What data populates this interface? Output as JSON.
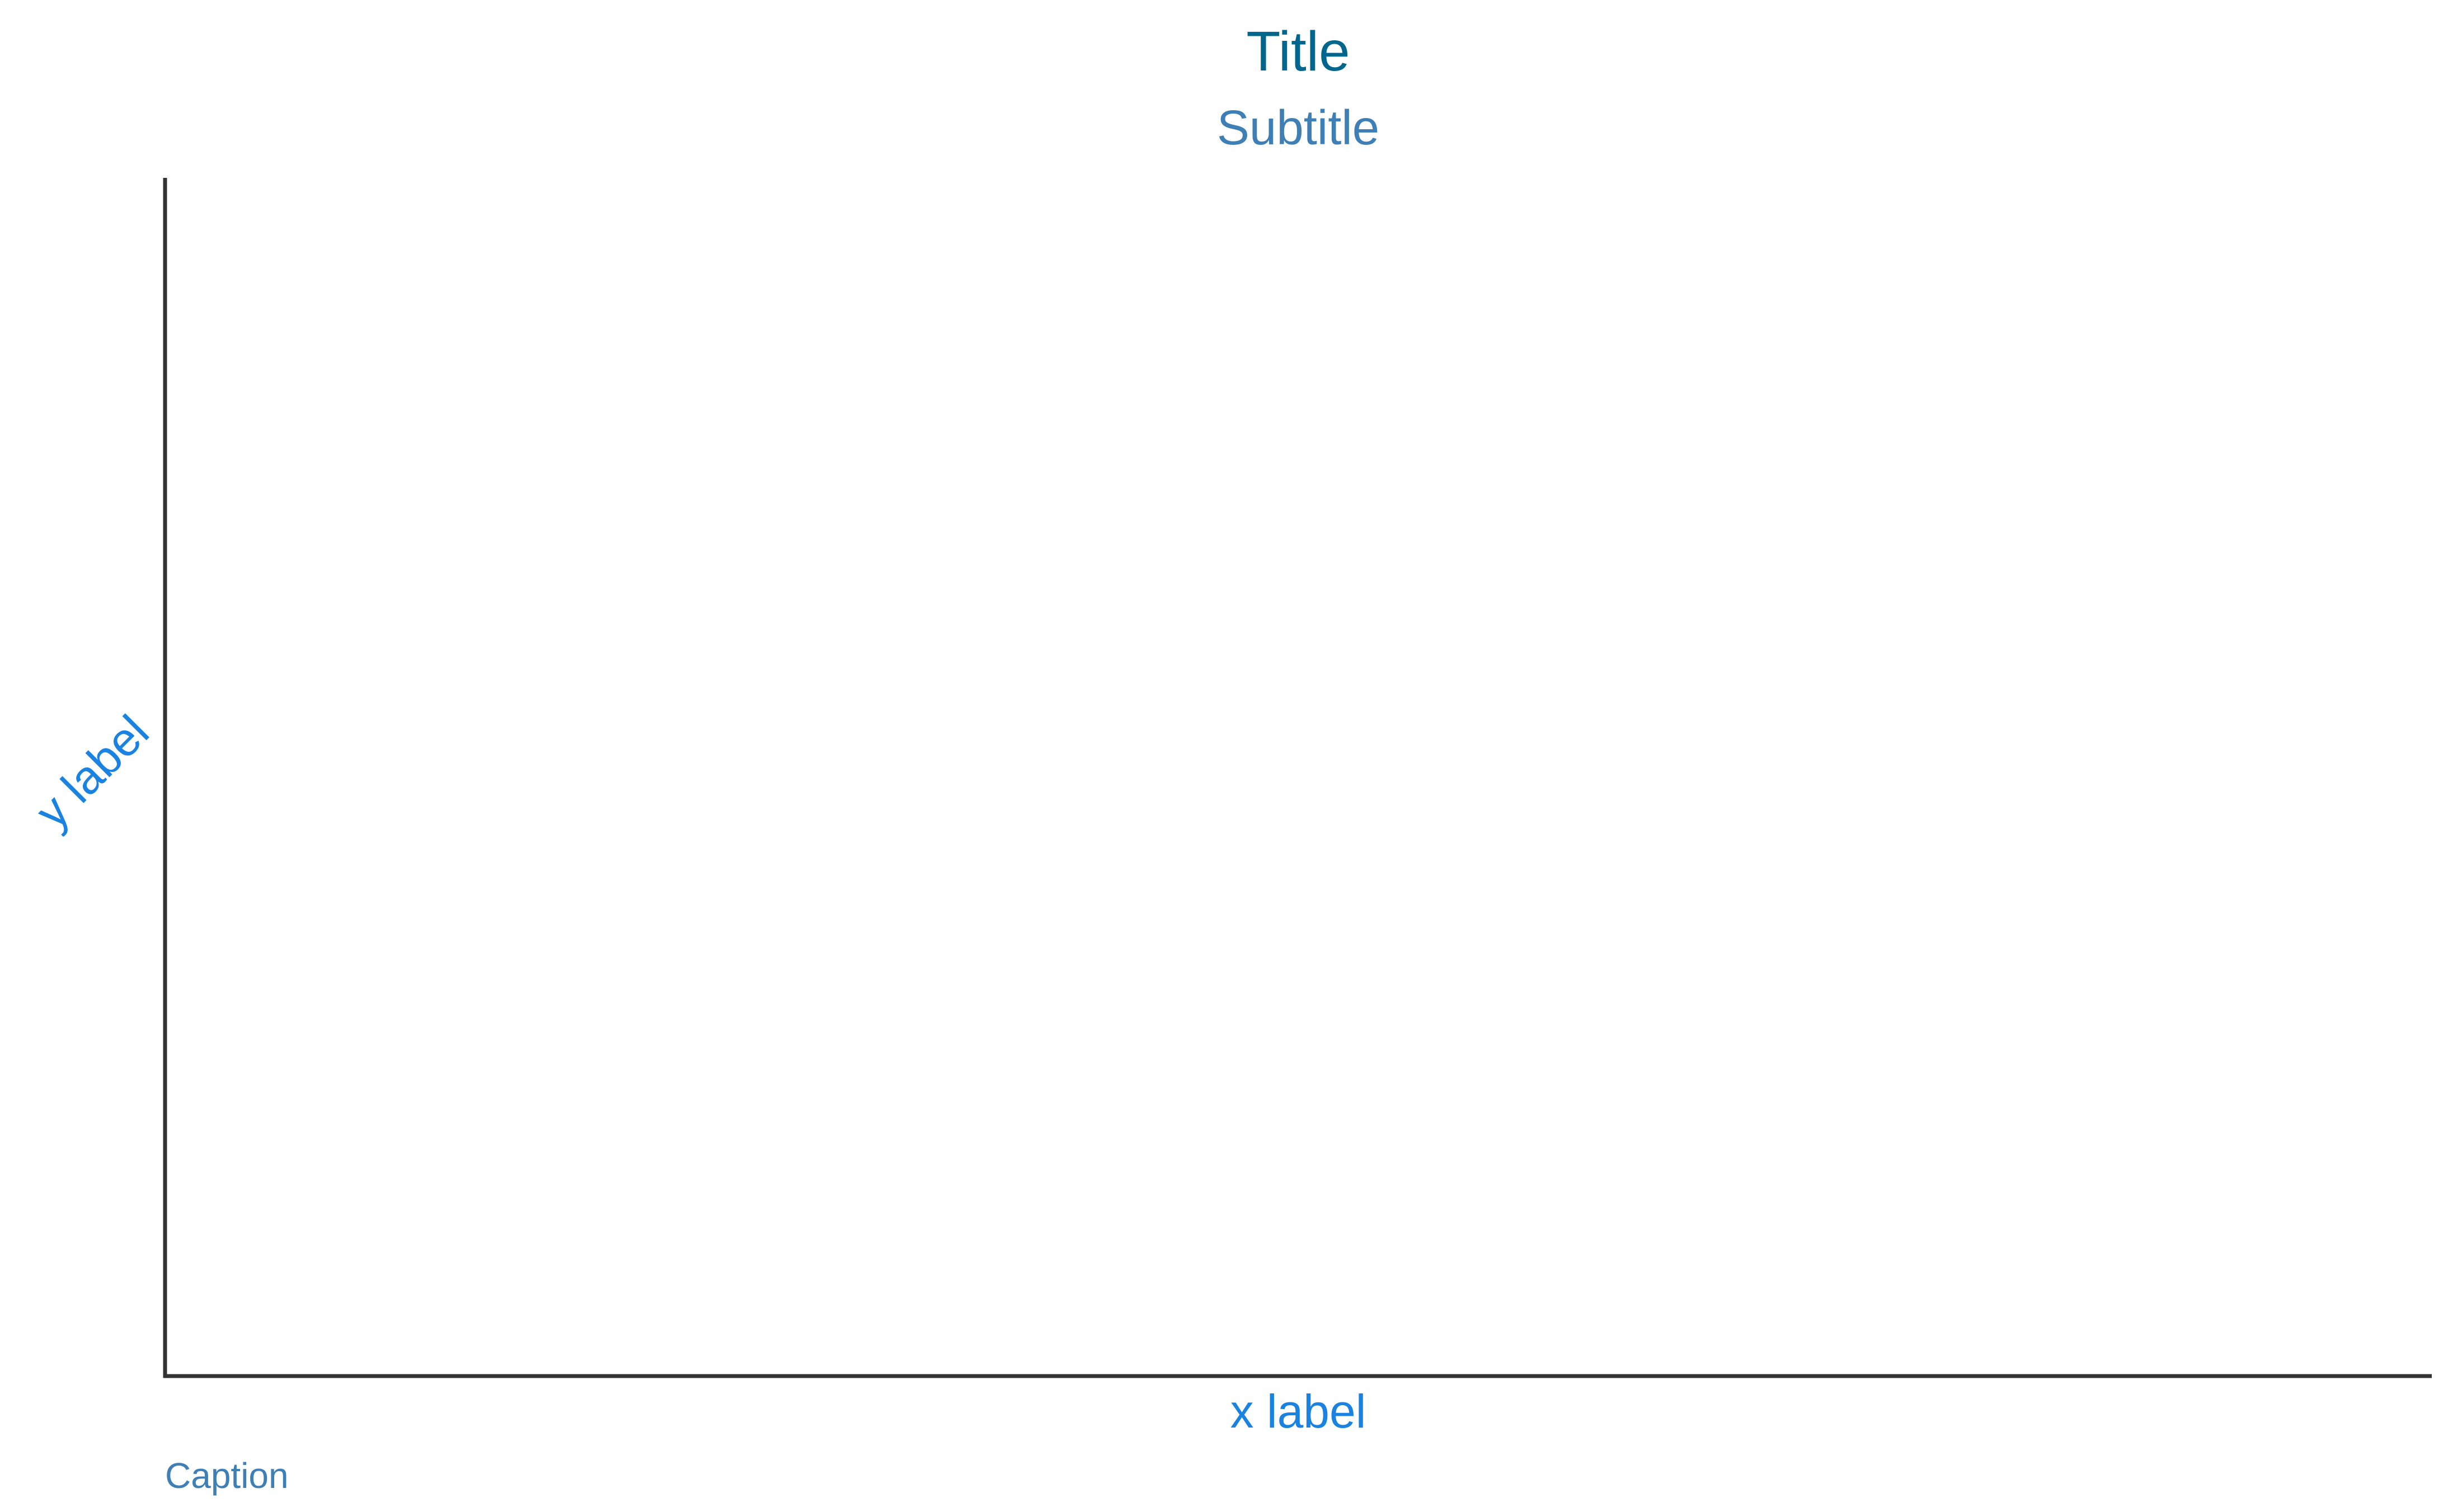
{
  "chart_data": {
    "type": "scatter",
    "title": "Title",
    "subtitle": "Subtitle",
    "xlabel": "x label",
    "ylabel": "y label",
    "caption": "Caption",
    "series": [],
    "grid": false,
    "legend": "none"
  },
  "colors": {
    "title": "#00668E",
    "subtitle": "#3E7FB6",
    "axis_label": "#1A82E0",
    "caption": "#3E7FB6",
    "axis_line": "#333333",
    "background": "#FFFFFF"
  }
}
